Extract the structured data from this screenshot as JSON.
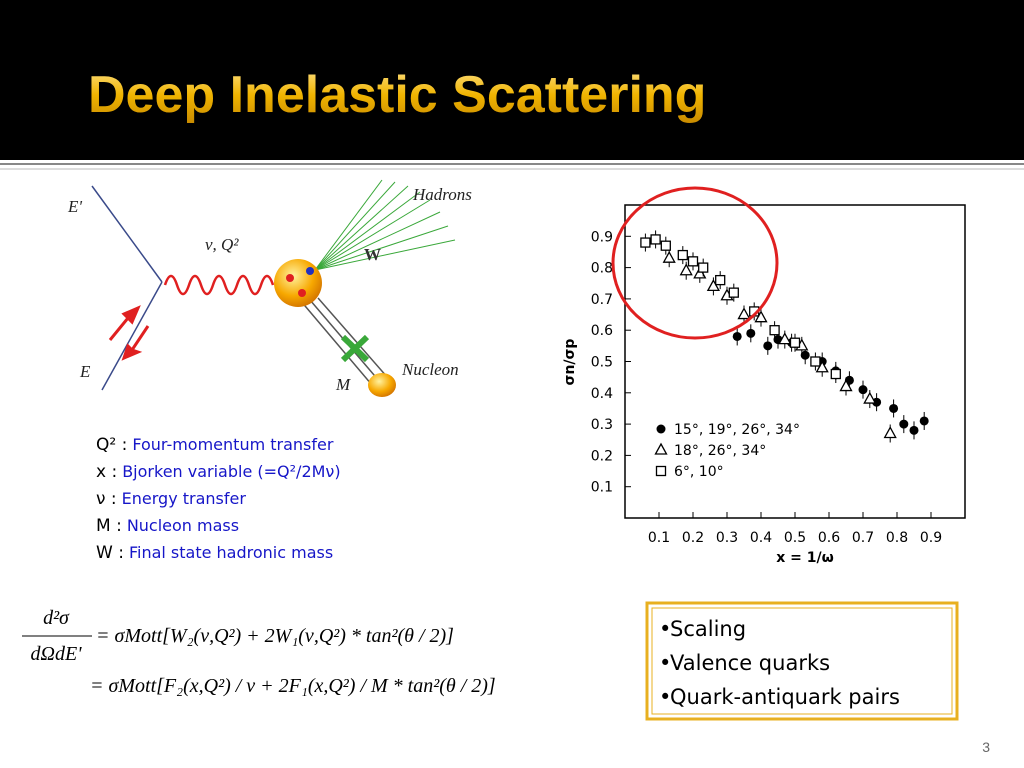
{
  "slide": {
    "title": "Deep Inelastic Scattering",
    "page_number": "3"
  },
  "diagram": {
    "labels": {
      "e_out": "E'",
      "photon": "ν, Q²",
      "hadrons": "Hadrons",
      "w": "W",
      "e_in": "E",
      "nucleon": "Nucleon",
      "m": "M"
    }
  },
  "definitions": [
    {
      "symbol": "Q² :",
      "text": "Four-momentum transfer"
    },
    {
      "symbol": "x :",
      "text": "Bjorken variable (=Q²/2Mν)"
    },
    {
      "symbol": "ν :",
      "text": "Energy transfer"
    },
    {
      "symbol": "M :",
      "text": "Nucleon mass"
    },
    {
      "symbol": "W :",
      "text": "Final state hadronic mass"
    }
  ],
  "formula": {
    "numerator": "d²σ",
    "denominator": "dΩdE'",
    "line1": "= σMott[W₂(ν,Q²) + 2W₁(ν,Q²) * tan²(θ / 2)]",
    "line2": "= σMott[F₂(x,Q²) / ν + 2F₁(x,Q²) / M * tan²(θ / 2)]"
  },
  "bullets": [
    "Scaling",
    "Valence quarks",
    "Quark-antiquark pairs"
  ],
  "chart_data": {
    "type": "scatter",
    "x_label": "x = 1/ω",
    "y_label": "σn/σp",
    "xlim": [
      0,
      1
    ],
    "ylim": [
      0,
      1
    ],
    "xticks": [
      0.1,
      0.2,
      0.3,
      0.4,
      0.5,
      0.6,
      0.7,
      0.8,
      0.9
    ],
    "yticks": [
      0.1,
      0.2,
      0.3,
      0.4,
      0.5,
      0.6,
      0.7,
      0.8,
      0.9
    ],
    "legend": "lower left",
    "series": [
      {
        "name": "15°, 19°, 26°, 34°",
        "marker": "circle",
        "color": "#000000",
        "x": [
          0.33,
          0.37,
          0.42,
          0.45,
          0.49,
          0.53,
          0.58,
          0.62,
          0.66,
          0.7,
          0.74,
          0.79,
          0.82,
          0.85,
          0.88
        ],
        "values": [
          0.58,
          0.59,
          0.55,
          0.57,
          0.56,
          0.52,
          0.5,
          0.47,
          0.44,
          0.41,
          0.37,
          0.35,
          0.3,
          0.28,
          0.31
        ]
      },
      {
        "name": "18°, 26°, 34°",
        "marker": "triangle",
        "color": "#000000",
        "x": [
          0.13,
          0.18,
          0.22,
          0.26,
          0.3,
          0.35,
          0.4,
          0.47,
          0.52,
          0.58,
          0.65,
          0.72,
          0.78
        ],
        "values": [
          0.83,
          0.79,
          0.78,
          0.74,
          0.71,
          0.65,
          0.64,
          0.57,
          0.55,
          0.48,
          0.42,
          0.38,
          0.27
        ]
      },
      {
        "name": "6°, 10°",
        "marker": "square",
        "color": "#000000",
        "x": [
          0.06,
          0.09,
          0.12,
          0.17,
          0.2,
          0.23,
          0.28,
          0.32,
          0.38,
          0.44,
          0.5,
          0.56,
          0.62
        ],
        "values": [
          0.88,
          0.89,
          0.87,
          0.84,
          0.82,
          0.8,
          0.76,
          0.72,
          0.66,
          0.6,
          0.56,
          0.5,
          0.46
        ]
      }
    ]
  }
}
